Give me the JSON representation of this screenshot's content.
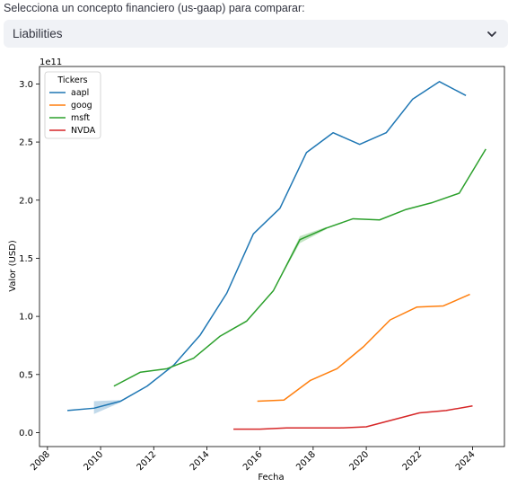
{
  "selector": {
    "label": "Selecciona un concepto financiero (us-gaap) para comparar:",
    "value": "Liabilities",
    "chevron_icon": "chevron-down-icon"
  },
  "chart_data": {
    "type": "line",
    "title": "",
    "xlabel": "Fecha",
    "ylabel": "Valor (USD)",
    "y_scale_label": "1e11",
    "xlim": [
      2007.7,
      2025.2
    ],
    "ylim": [
      -0.12,
      3.15
    ],
    "x_ticks": [
      2008,
      2010,
      2012,
      2014,
      2016,
      2018,
      2020,
      2022,
      2024
    ],
    "x_tick_labels": [
      "2008",
      "2010",
      "2012",
      "2014",
      "2016",
      "2018",
      "2020",
      "2022",
      "2024"
    ],
    "y_ticks": [
      0.0,
      0.5,
      1.0,
      1.5,
      2.0,
      2.5,
      3.0
    ],
    "y_tick_labels": [
      "0.0",
      "0.5",
      "1.0",
      "1.5",
      "2.0",
      "2.5",
      "3.0"
    ],
    "legend": {
      "title": "Tickers",
      "placement": "upper-left"
    },
    "grid": false,
    "series": [
      {
        "name": "aapl",
        "color": "#1f77b4",
        "x": [
          2008.75,
          2009.75,
          2010.75,
          2011.75,
          2012.75,
          2013.75,
          2014.75,
          2015.75,
          2016.75,
          2017.75,
          2018.75,
          2019.75,
          2020.75,
          2021.75,
          2022.75,
          2023.75
        ],
        "y": [
          0.19,
          0.21,
          0.27,
          0.4,
          0.58,
          0.84,
          1.2,
          1.71,
          1.93,
          2.41,
          2.58,
          2.48,
          2.58,
          2.87,
          3.02,
          2.9
        ],
        "band": {
          "x": [
            2009.75,
            2010.75
          ],
          "upper": [
            0.27,
            0.28
          ],
          "lower": [
            0.16,
            0.26
          ]
        }
      },
      {
        "name": "goog",
        "color": "#ff7f0e",
        "x": [
          2015.9,
          2016.9,
          2017.9,
          2018.9,
          2019.9,
          2020.9,
          2021.9,
          2022.9,
          2023.9
        ],
        "y": [
          0.27,
          0.28,
          0.45,
          0.55,
          0.74,
          0.97,
          1.08,
          1.09,
          1.19
        ]
      },
      {
        "name": "msft",
        "color": "#2ca02c",
        "x": [
          2010.5,
          2011.5,
          2012.5,
          2013.5,
          2014.5,
          2015.5,
          2016.5,
          2017.5,
          2018.5,
          2019.5,
          2020.5,
          2021.5,
          2022.5,
          2023.5,
          2024.5
        ],
        "y": [
          0.4,
          0.52,
          0.55,
          0.64,
          0.83,
          0.96,
          1.22,
          1.66,
          1.76,
          1.84,
          1.83,
          1.92,
          1.98,
          2.06,
          2.44
        ],
        "band": {
          "x": [
            2016.5,
            2017.5,
            2018.5
          ],
          "upper": [
            1.22,
            1.69,
            1.77
          ],
          "lower": [
            1.22,
            1.63,
            1.75
          ]
        }
      },
      {
        "name": "NVDA",
        "color": "#d62728",
        "x": [
          2015.0,
          2016.0,
          2017.0,
          2018.0,
          2019.0,
          2020.0,
          2021.0,
          2022.0,
          2023.0,
          2024.0
        ],
        "y": [
          0.03,
          0.03,
          0.04,
          0.04,
          0.04,
          0.05,
          0.11,
          0.17,
          0.19,
          0.23
        ]
      }
    ]
  }
}
